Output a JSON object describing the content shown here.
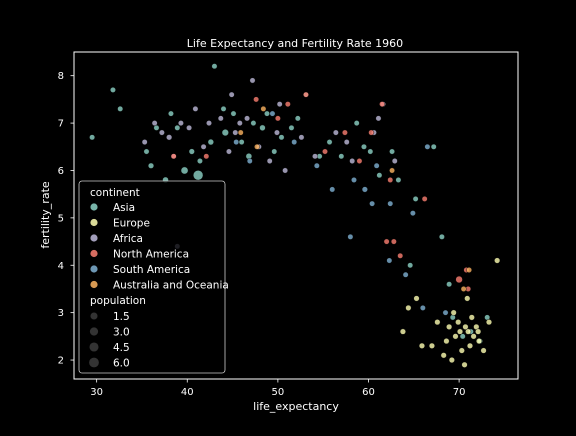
{
  "chart_data": {
    "type": "scatter",
    "title": "Life Expectancy and Fertility Rate 1960",
    "xlabel": "life_expectancy",
    "ylabel": "fertility_rate",
    "xlim": [
      27.5,
      76.5
    ],
    "ylim": [
      1.6,
      8.5
    ],
    "xticks": [
      30,
      40,
      50,
      60,
      70
    ],
    "yticks": [
      2,
      3,
      4,
      5,
      6,
      7,
      8
    ],
    "grid": false,
    "legend_placement": "lower-left",
    "legend": {
      "hue_title": "continent",
      "size_title": "population",
      "size_levels": [
        {
          "label": "1.5",
          "value": 1.5
        },
        {
          "label": "3.0",
          "value": 3.0
        },
        {
          "label": "4.5",
          "value": 4.5
        },
        {
          "label": "6.0",
          "value": 6.0
        }
      ]
    },
    "series": [
      {
        "name": "Asia",
        "color": "#8dd3c7",
        "points": [
          [
            29.5,
            6.7
          ],
          [
            31.8,
            7.7
          ],
          [
            32.6,
            7.3
          ],
          [
            35.5,
            6.4
          ],
          [
            36.0,
            6.1
          ],
          [
            36.6,
            6.9
          ],
          [
            37.6,
            5.8
          ],
          [
            38.2,
            7.2
          ],
          [
            38.9,
            6.9
          ],
          [
            39.7,
            6.0
          ],
          [
            40.5,
            6.4
          ],
          [
            41.2,
            5.9
          ],
          [
            41.4,
            6.2
          ],
          [
            42.6,
            6.6
          ],
          [
            43.0,
            8.2
          ],
          [
            44.0,
            7.3
          ],
          [
            44.2,
            6.8
          ],
          [
            45.1,
            7.2
          ],
          [
            46.0,
            6.6
          ],
          [
            46.8,
            6.3
          ],
          [
            47.3,
            7.0
          ],
          [
            48.3,
            6.9
          ],
          [
            48.8,
            7.2
          ],
          [
            49.6,
            6.4
          ],
          [
            50.4,
            6.7
          ],
          [
            51.5,
            6.9
          ],
          [
            52.2,
            7.1
          ],
          [
            53.1,
            7.6
          ],
          [
            54.6,
            6.3
          ],
          [
            55.7,
            6.6
          ],
          [
            57.0,
            6.3
          ],
          [
            58.7,
            7.0
          ],
          [
            59.5,
            6.5
          ],
          [
            60.2,
            6.4
          ],
          [
            61.2,
            5.9
          ],
          [
            62.6,
            6.4
          ],
          [
            63.3,
            5.8
          ],
          [
            64.6,
            4.0
          ],
          [
            65.2,
            5.4
          ],
          [
            67.2,
            6.5
          ],
          [
            68.1,
            4.6
          ],
          [
            68.9,
            3.6
          ],
          [
            69.3,
            2.9
          ],
          [
            70.4,
            2.5
          ],
          [
            71.3,
            2.6
          ],
          [
            72.3,
            2.4
          ],
          [
            73.1,
            2.9
          ]
        ],
        "populations": [
          0.2,
          0.2,
          0.2,
          0.2,
          0.3,
          0.2,
          0.5,
          0.2,
          0.2,
          1.5,
          0.3,
          6.0,
          0.2,
          0.4,
          0.2,
          0.2,
          1.0,
          0.2,
          0.2,
          0.5,
          0.2,
          0.4,
          0.2,
          0.2,
          0.2,
          0.2,
          0.2,
          0.2,
          0.2,
          0.2,
          0.2,
          0.2,
          0.2,
          0.2,
          0.2,
          0.2,
          0.2,
          0.2,
          0.2,
          0.2,
          0.2,
          0.2,
          0.2,
          0.2,
          0.2,
          0.2,
          0.2
        ]
      },
      {
        "name": "Europe",
        "color": "#ffffb3",
        "points": [
          [
            63.8,
            2.6
          ],
          [
            64.4,
            3.1
          ],
          [
            65.3,
            3.3
          ],
          [
            65.9,
            2.3
          ],
          [
            67.0,
            2.3
          ],
          [
            67.6,
            2.8
          ],
          [
            68.3,
            2.1
          ],
          [
            68.6,
            2.4
          ],
          [
            68.9,
            2.7
          ],
          [
            69.2,
            2.0
          ],
          [
            69.6,
            2.5
          ],
          [
            69.9,
            2.8
          ],
          [
            70.1,
            2.6
          ],
          [
            70.3,
            2.2
          ],
          [
            70.6,
            1.9
          ],
          [
            70.7,
            2.7
          ],
          [
            71.0,
            2.6
          ],
          [
            71.2,
            2.3
          ],
          [
            71.4,
            2.9
          ],
          [
            71.6,
            2.5
          ],
          [
            71.9,
            2.7
          ],
          [
            72.2,
            2.4
          ],
          [
            72.7,
            2.2
          ],
          [
            73.3,
            2.8
          ],
          [
            74.2,
            4.1
          ],
          [
            69.4,
            3.0
          ],
          [
            70.9,
            3.3
          ],
          [
            72.1,
            2.6
          ]
        ],
        "populations": [
          0.3,
          0.3,
          0.3,
          0.3,
          0.3,
          0.3,
          0.3,
          0.3,
          0.3,
          0.3,
          0.3,
          0.3,
          0.3,
          0.3,
          0.3,
          0.3,
          0.3,
          0.3,
          0.3,
          0.3,
          0.3,
          0.3,
          0.3,
          0.3,
          0.3,
          0.3,
          0.3,
          0.3
        ]
      },
      {
        "name": "Africa",
        "color": "#bebada",
        "points": [
          [
            35.3,
            6.6
          ],
          [
            36.4,
            7.0
          ],
          [
            37.2,
            6.8
          ],
          [
            38.0,
            6.7
          ],
          [
            38.5,
            6.3
          ],
          [
            39.3,
            7.0
          ],
          [
            40.2,
            6.9
          ],
          [
            40.9,
            7.3
          ],
          [
            41.8,
            6.5
          ],
          [
            42.4,
            7.0
          ],
          [
            43.7,
            7.1
          ],
          [
            44.6,
            6.4
          ],
          [
            45.3,
            6.8
          ],
          [
            45.8,
            7.0
          ],
          [
            46.6,
            7.1
          ],
          [
            47.2,
            7.9
          ],
          [
            47.9,
            6.5
          ],
          [
            49.1,
            6.2
          ],
          [
            49.9,
            6.8
          ],
          [
            50.8,
            6.0
          ],
          [
            52.6,
            6.7
          ],
          [
            54.1,
            6.3
          ],
          [
            56.4,
            6.8
          ],
          [
            58.2,
            6.2
          ],
          [
            60.6,
            6.8
          ],
          [
            61.6,
            7.4
          ],
          [
            62.9,
            6.2
          ],
          [
            38.9,
            4.4
          ],
          [
            44.9,
            7.6
          ],
          [
            50.2,
            7.4
          ],
          [
            57.6,
            6.6
          ],
          [
            61.1,
            7.1
          ]
        ],
        "populations": [
          0.2,
          0.2,
          0.2,
          0.3,
          0.2,
          0.2,
          0.2,
          0.2,
          0.2,
          0.2,
          0.2,
          0.2,
          0.2,
          0.2,
          0.2,
          0.2,
          0.2,
          0.2,
          0.2,
          0.2,
          0.2,
          0.2,
          0.2,
          0.2,
          0.2,
          0.2,
          0.2,
          0.2,
          0.2,
          0.2,
          0.2,
          0.2
        ]
      },
      {
        "name": "North America",
        "color": "#fb8072",
        "points": [
          [
            38.5,
            6.3
          ],
          [
            42.1,
            6.3
          ],
          [
            47.6,
            7.5
          ],
          [
            50.0,
            7.1
          ],
          [
            51.1,
            7.4
          ],
          [
            53.1,
            7.6
          ],
          [
            55.2,
            6.4
          ],
          [
            57.4,
            6.8
          ],
          [
            59.0,
            6.2
          ],
          [
            60.3,
            6.8
          ],
          [
            61.5,
            7.4
          ],
          [
            62.0,
            4.5
          ],
          [
            62.8,
            4.5
          ],
          [
            63.5,
            4.2
          ],
          [
            66.2,
            5.4
          ],
          [
            70.0,
            3.7
          ],
          [
            71.0,
            3.5
          ],
          [
            70.8,
            3.9
          ],
          [
            62.4,
            5.8
          ]
        ],
        "populations": [
          0.2,
          0.2,
          0.2,
          0.2,
          0.2,
          0.2,
          0.2,
          0.2,
          0.2,
          0.2,
          0.2,
          0.2,
          0.2,
          0.2,
          0.2,
          1.2,
          0.2,
          0.2,
          0.2
        ]
      },
      {
        "name": "South America",
        "color": "#80b1d3",
        "points": [
          [
            45.4,
            6.6
          ],
          [
            46.9,
            6.2
          ],
          [
            49.4,
            7.2
          ],
          [
            51.8,
            6.6
          ],
          [
            54.3,
            6.1
          ],
          [
            56.0,
            5.6
          ],
          [
            58.4,
            5.8
          ],
          [
            59.6,
            5.6
          ],
          [
            60.4,
            5.3
          ],
          [
            62.4,
            5.3
          ],
          [
            64.9,
            5.1
          ],
          [
            66.5,
            6.5
          ],
          [
            66.0,
            3.1
          ],
          [
            68.5,
            3.0
          ],
          [
            64.1,
            3.8
          ],
          [
            62.3,
            4.1
          ],
          [
            58.0,
            4.6
          ],
          [
            60.9,
            6.1
          ]
        ],
        "populations": [
          0.2,
          0.2,
          0.2,
          0.2,
          0.2,
          0.2,
          0.2,
          0.3,
          0.2,
          0.2,
          0.2,
          0.2,
          0.2,
          0.2,
          0.2,
          0.2,
          0.2,
          0.2
        ]
      },
      {
        "name": "Australia and Oceania",
        "color": "#fdb462",
        "points": [
          [
            47.7,
            6.5
          ],
          [
            48.4,
            7.3
          ],
          [
            45.9,
            6.8
          ],
          [
            62.6,
            6.0
          ],
          [
            70.5,
            3.5
          ],
          [
            71.1,
            3.9
          ]
        ],
        "populations": [
          0.2,
          0.2,
          0.2,
          0.2,
          0.2,
          0.2
        ]
      }
    ]
  }
}
